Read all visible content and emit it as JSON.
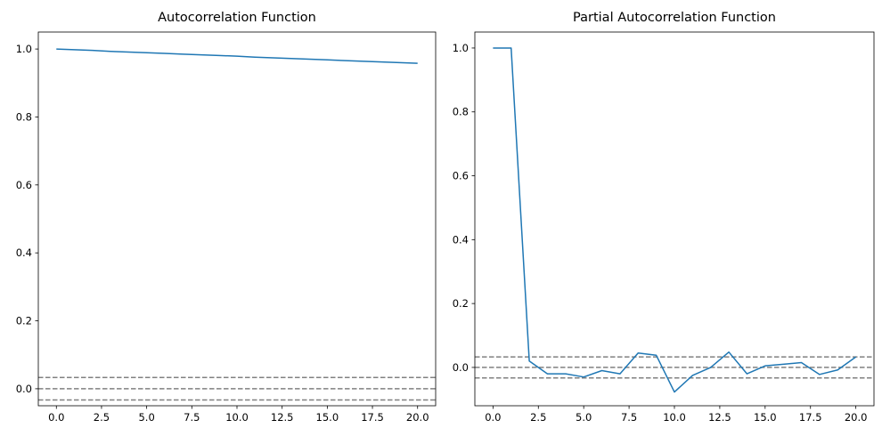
{
  "chart_data": [
    {
      "type": "line",
      "title": "Autocorrelation Function",
      "xlabel": "",
      "ylabel": "",
      "xlim": [
        -1,
        21
      ],
      "ylim": [
        -0.05,
        1.05
      ],
      "xticks": [
        0,
        2.5,
        5,
        7.5,
        10,
        12.5,
        15,
        17.5,
        20
      ],
      "xtick_labels": [
        "0.0",
        "2.5",
        "5.0",
        "7.5",
        "10.0",
        "12.5",
        "15.0",
        "17.5",
        "20.0"
      ],
      "yticks": [
        0,
        0.2,
        0.4,
        0.6,
        0.8,
        1.0
      ],
      "ytick_labels": [
        "0.0",
        "0.2",
        "0.4",
        "0.6",
        "0.8",
        "1.0"
      ],
      "grid": false,
      "series": [
        {
          "color": "#1f77b4",
          "x": [
            0,
            1,
            2,
            3,
            4,
            5,
            6,
            7,
            8,
            9,
            10,
            11,
            12,
            13,
            14,
            15,
            16,
            17,
            18,
            19,
            20
          ],
          "y": [
            1.0,
            0.998,
            0.996,
            0.993,
            0.991,
            0.989,
            0.987,
            0.985,
            0.983,
            0.981,
            0.979,
            0.976,
            0.974,
            0.972,
            0.97,
            0.968,
            0.966,
            0.964,
            0.962,
            0.96,
            0.958
          ]
        }
      ],
      "reference_lines": [
        {
          "y": 0.033,
          "color": "#808080",
          "style": "dashed"
        },
        {
          "y": 0.0,
          "color": "#808080",
          "style": "dashed"
        },
        {
          "y": -0.033,
          "color": "#808080",
          "style": "dashed"
        }
      ]
    },
    {
      "type": "line",
      "title": "Partial Autocorrelation Function",
      "xlabel": "",
      "ylabel": "",
      "xlim": [
        -1,
        21
      ],
      "ylim": [
        -0.12,
        1.05
      ],
      "xticks": [
        0,
        2.5,
        5,
        7.5,
        10,
        12.5,
        15,
        17.5,
        20
      ],
      "xtick_labels": [
        "0.0",
        "2.5",
        "5.0",
        "7.5",
        "10.0",
        "12.5",
        "15.0",
        "17.5",
        "20.0"
      ],
      "yticks": [
        0,
        0.2,
        0.4,
        0.6,
        0.8,
        1.0
      ],
      "ytick_labels": [
        "0.0",
        "0.2",
        "0.4",
        "0.6",
        "0.8",
        "1.0"
      ],
      "grid": false,
      "series": [
        {
          "color": "#1f77b4",
          "x": [
            0,
            1,
            2,
            3,
            4,
            5,
            6,
            7,
            8,
            9,
            10,
            11,
            12,
            13,
            14,
            15,
            16,
            17,
            18,
            19,
            20
          ],
          "y": [
            1.0,
            1.0,
            0.02,
            -0.02,
            -0.02,
            -0.03,
            -0.01,
            -0.02,
            0.045,
            0.038,
            -0.077,
            -0.025,
            0.0,
            0.048,
            -0.02,
            0.005,
            0.01,
            0.015,
            -0.022,
            -0.008,
            0.033
          ]
        }
      ],
      "reference_lines": [
        {
          "y": 0.033,
          "color": "#808080",
          "style": "dashed"
        },
        {
          "y": 0.0,
          "color": "#808080",
          "style": "dashed"
        },
        {
          "y": -0.033,
          "color": "#808080",
          "style": "dashed"
        }
      ]
    }
  ]
}
